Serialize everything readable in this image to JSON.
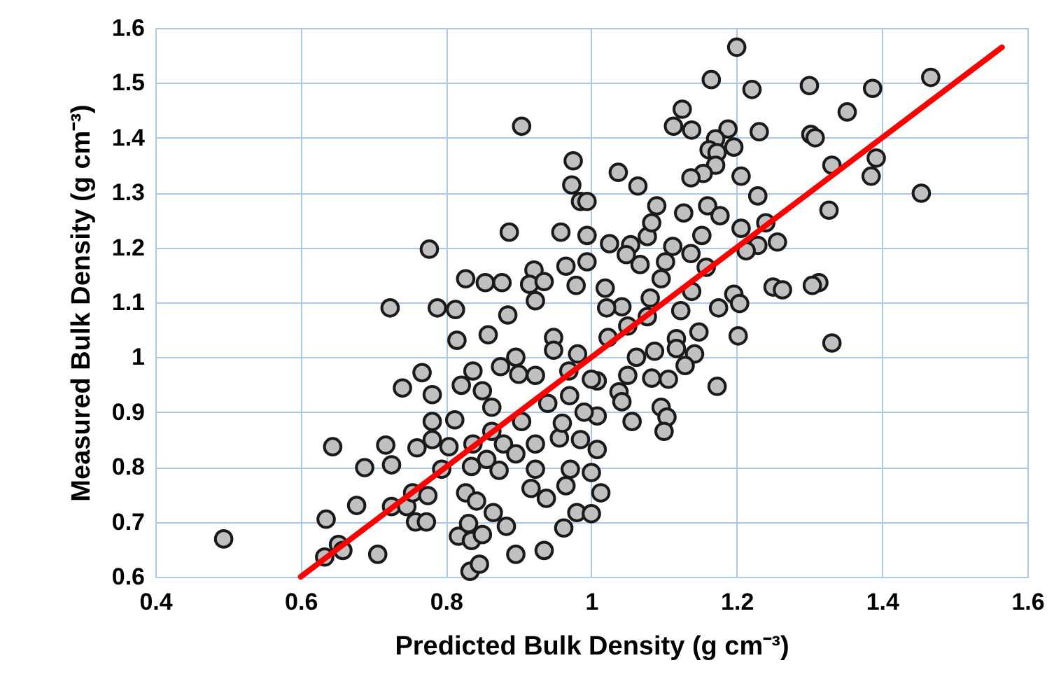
{
  "chart_data": {
    "type": "scatter",
    "xlabel": "Predicted Bulk Density (g cm⁻³)",
    "ylabel": "Measured Bulk Density (g cm⁻³)",
    "xlim": [
      0.4,
      1.6
    ],
    "ylim": [
      0.6,
      1.6
    ],
    "xticks": [
      0.4,
      0.6,
      0.8,
      1,
      1.2,
      1.4,
      1.6
    ],
    "yticks": [
      0.6,
      0.7,
      0.8,
      0.9,
      1,
      1.1,
      1.2,
      1.3,
      1.4,
      1.5,
      1.6
    ],
    "grid": true,
    "series": [
      {
        "marker": "circle",
        "color": "#c0c0c0",
        "x": [
          1.2,
          1.165,
          1.221,
          1.3,
          1.387,
          1.467,
          1.125,
          1.113,
          1.138,
          1.188,
          1.231,
          1.352,
          1.302,
          1.308,
          1.171,
          1.162,
          1.173,
          1.196,
          1.171,
          1.154,
          1.137,
          1.037,
          1.064,
          1.206,
          1.331,
          1.392,
          1.385,
          1.454,
          1.229,
          0.904,
          0.975,
          0.973,
          0.985,
          0.887,
          0.958,
          0.777,
          0.827,
          0.854,
          0.877,
          0.921,
          0.915,
          0.935,
          0.965,
          0.979,
          0.923,
          0.723,
          0.788,
          0.813,
          0.885,
          0.815,
          0.858,
          0.767,
          0.74,
          0.781,
          0.644,
          0.717,
          0.76,
          0.688,
          0.725,
          0.781,
          0.781,
          0.812,
          0.804,
          0.794,
          0.677,
          0.635,
          0.494,
          0.652,
          0.658,
          0.633,
          0.706,
          0.725,
          0.746,
          0.754,
          0.775,
          0.758,
          0.773,
          0.833,
          0.846,
          0.817,
          0.835,
          0.85,
          0.831,
          0.883,
          0.896,
          0.935,
          0.827,
          0.842,
          0.865,
          0.835,
          0.873,
          0.856,
          0.837,
          0.879,
          0.896,
          0.863,
          0.904,
          0.923,
          0.821,
          0.837,
          0.85,
          0.863,
          0.875,
          0.896,
          0.9,
          0.923,
          0.948,
          0.948,
          0.969,
          0.94,
          0.923,
          0.917,
          0.938,
          0.965,
          0.962,
          0.98,
          0.956,
          0.971,
          0.981,
          1.331,
          1.173,
          1.202,
          1.148,
          1.196,
          1.204,
          1.175,
          1.138,
          1.123,
          1.081,
          1.077,
          1.042,
          1.021,
          1.019,
          1.05,
          1.023,
          1.062,
          1.087,
          1.117,
          1.117,
          1.142,
          1.129,
          1.05,
          1.083,
          1.106,
          1.038,
          1.042,
          1.096,
          1.104,
          1.1,
          1.056,
          1.008,
          1.008,
          1.013,
          1.0,
          1.008,
          1.327,
          1.256,
          1.24,
          1.229,
          1.206,
          1.213,
          1.25,
          1.263,
          1.313,
          1.304,
          1.152,
          1.158,
          1.137,
          1.112,
          1.102,
          1.077,
          1.083,
          1.09,
          1.127,
          1.16,
          1.177,
          1.054,
          1.025,
          1.048,
          1.067,
          1.096,
          0.994,
          0.994,
          0.994,
          1.0,
          0.99,
          0.985,
          0.97,
          0.96,
          1.0
        ],
        "values": [
          1.565,
          1.506,
          1.488,
          1.495,
          1.49,
          1.51,
          1.452,
          1.421,
          1.414,
          1.416,
          1.411,
          1.447,
          1.406,
          1.4,
          1.398,
          1.378,
          1.373,
          1.383,
          1.35,
          1.335,
          1.327,
          1.337,
          1.312,
          1.33,
          1.35,
          1.363,
          1.33,
          1.299,
          1.294,
          1.421,
          1.358,
          1.314,
          1.284,
          1.228,
          1.228,
          1.197,
          1.143,
          1.136,
          1.136,
          1.159,
          1.133,
          1.138,
          1.166,
          1.131,
          1.103,
          1.09,
          1.09,
          1.087,
          1.077,
          1.031,
          1.041,
          0.972,
          0.944,
          0.932,
          0.837,
          0.84,
          0.835,
          0.799,
          0.804,
          0.883,
          0.85,
          0.886,
          0.837,
          0.796,
          0.73,
          0.705,
          0.669,
          0.659,
          0.648,
          0.636,
          0.641,
          0.728,
          0.728,
          0.753,
          0.748,
          0.7,
          0.7,
          0.61,
          0.623,
          0.674,
          0.666,
          0.677,
          0.697,
          0.692,
          0.641,
          0.648,
          0.753,
          0.738,
          0.717,
          0.801,
          0.794,
          0.814,
          0.842,
          0.842,
          0.824,
          0.865,
          0.883,
          0.842,
          0.949,
          0.975,
          0.939,
          0.909,
          0.983,
          1.0,
          0.969,
          0.967,
          1.036,
          1.013,
          0.975,
          0.916,
          0.796,
          0.761,
          0.743,
          0.766,
          0.689,
          0.717,
          0.853,
          0.796,
          1.006,
          1.026,
          0.947,
          1.039,
          1.046,
          1.115,
          1.098,
          1.09,
          1.12,
          1.085,
          1.108,
          1.074,
          1.092,
          1.09,
          1.126,
          1.057,
          1.036,
          1.0,
          1.011,
          1.034,
          1.016,
          1.006,
          0.985,
          0.967,
          0.962,
          0.96,
          0.937,
          0.919,
          0.909,
          0.891,
          0.865,
          0.883,
          0.893,
          0.832,
          0.753,
          0.715,
          0.957,
          1.268,
          1.21,
          1.245,
          1.204,
          1.235,
          1.194,
          1.128,
          1.123,
          1.136,
          1.131,
          1.222,
          1.164,
          1.189,
          1.202,
          1.174,
          1.22,
          1.245,
          1.276,
          1.263,
          1.276,
          1.258,
          1.205,
          1.207,
          1.187,
          1.169,
          1.143,
          1.222,
          1.174,
          1.284,
          0.96,
          0.9,
          0.85,
          0.93,
          0.88,
          0.79
        ]
      },
      {
        "type": "line",
        "color": "#ff0000",
        "x": [
          0.6,
          1.565
        ],
        "values": [
          0.6,
          1.565
        ]
      }
    ]
  }
}
